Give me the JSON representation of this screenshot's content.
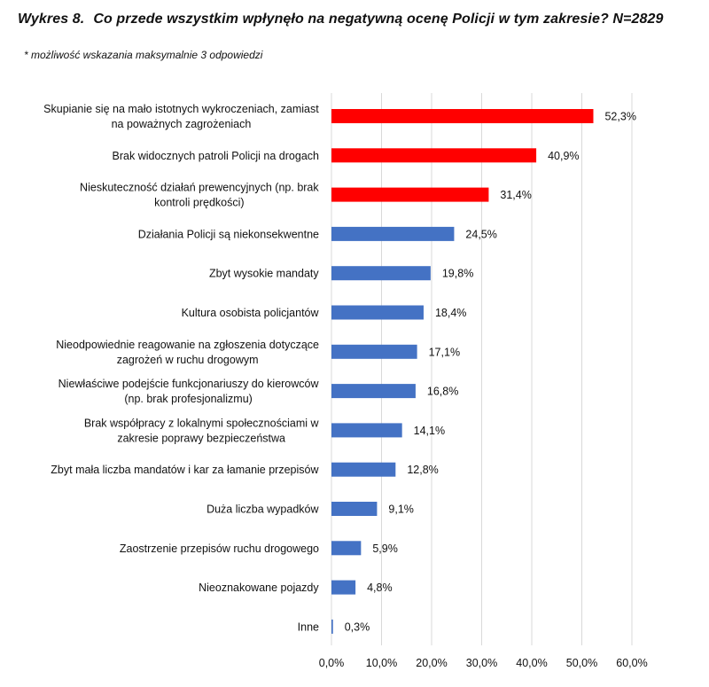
{
  "header": {
    "figure_number": "Wykres 8.",
    "title": "Co przede wszystkim wpłynęło na negatywną ocenę Policji w tym zakresie? N=2829",
    "note": "* możliwość wskazania maksymalnie 3 odpowiedzi"
  },
  "colors": {
    "highlight": "#ff0000",
    "default": "#4472c4",
    "grid": "#d9d9d9"
  },
  "chart_data": {
    "type": "bar",
    "orientation": "horizontal",
    "title": "Co przede wszystkim wpłynęło na negatywną ocenę Policji w tym zakresie? N=2829",
    "xlabel": "",
    "ylabel": "",
    "xlim": [
      0,
      60
    ],
    "unit": "%",
    "grid": true,
    "legend": "none",
    "highlighted_top": 3,
    "ticks": [
      "0,0%",
      "10,0%",
      "20,0%",
      "30,0%",
      "40,0%",
      "50,0%",
      "60,0%"
    ],
    "tick_values": [
      0,
      10,
      20,
      30,
      40,
      50,
      60
    ],
    "categories": [
      [
        "Skupianie się na mało istotnych wykroczeniach, zamiast",
        "na poważnych zagrożeniach"
      ],
      [
        "Brak widocznych patroli Policji na drogach"
      ],
      [
        "Nieskuteczność działań prewencyjnych (np. brak",
        "kontroli prędkości)"
      ],
      [
        "Działania Policji są niekonsekwentne"
      ],
      [
        "Zbyt wysokie mandaty"
      ],
      [
        "Kultura osobista policjantów"
      ],
      [
        "Nieodpowiednie reagowanie na zgłoszenia dotyczące",
        "zagrożeń w ruchu drogowym"
      ],
      [
        "Niewłaściwe podejście funkcjonariuszy do kierowców",
        "(np. brak profesjonalizmu)"
      ],
      [
        "Brak współpracy z lokalnymi społecznościami w",
        "zakresie poprawy bezpieczeństwa"
      ],
      [
        "Zbyt mała liczba mandatów i kar za łamanie przepisów"
      ],
      [
        "Duża liczba wypadków"
      ],
      [
        "Zaostrzenie przepisów ruchu drogowego"
      ],
      [
        "Nieoznakowane pojazdy"
      ],
      [
        "Inne"
      ]
    ],
    "values": [
      52.3,
      40.9,
      31.4,
      24.5,
      19.8,
      18.4,
      17.1,
      16.8,
      14.1,
      12.8,
      9.1,
      5.9,
      4.8,
      0.3
    ],
    "value_labels": [
      "52,3%",
      "40,9%",
      "31,4%",
      "24,5%",
      "19,8%",
      "18,4%",
      "17,1%",
      "16,8%",
      "14,1%",
      "12,8%",
      "9,1%",
      "5,9%",
      "4,8%",
      "0,3%"
    ]
  }
}
